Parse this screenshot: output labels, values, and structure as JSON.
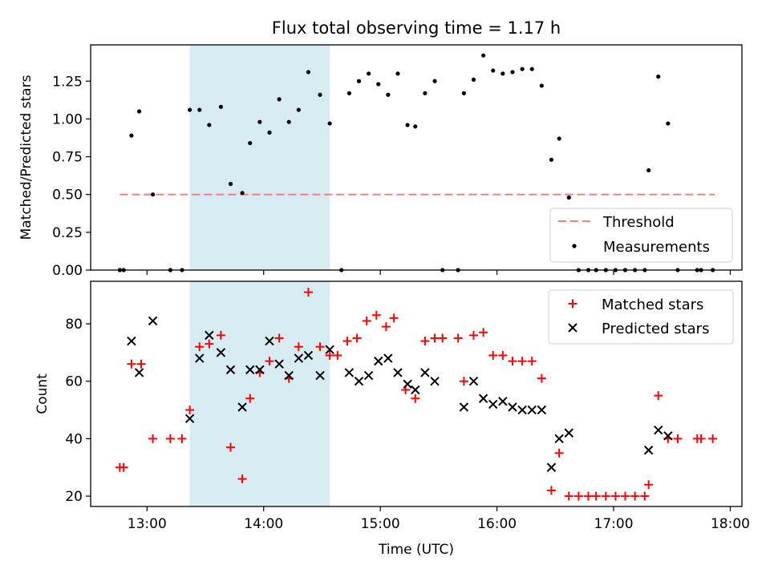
{
  "figure": {
    "title": "Flux total observing time = 1.17 h"
  },
  "colors": {
    "threshold": "#f08080",
    "measurement": "#000000",
    "matched": "#ff0000",
    "predicted": "#000000",
    "shade": "#add8e6"
  },
  "chart_data": [
    {
      "type": "scatter",
      "ylabel": "Matched/Predicted stars",
      "ylim": [
        0.0,
        1.49
      ],
      "yticks": [
        "0.00",
        "0.25",
        "0.50",
        "0.75",
        "1.00",
        "1.25"
      ],
      "xlim": [
        "12:31",
        "18:06"
      ],
      "xticks": [
        "13:00",
        "14:00",
        "15:00",
        "16:00",
        "17:00",
        "18:00"
      ],
      "xticklabels_visible": false,
      "shaded_span": [
        "13:22",
        "14:34"
      ],
      "threshold": {
        "name": "Threshold",
        "value": 0.5,
        "x_range": [
          "12:46",
          "17:52"
        ]
      },
      "legend": {
        "placement": "lower right",
        "entries": [
          "Threshold",
          "Measurements"
        ]
      },
      "series": [
        {
          "name": "Measurements",
          "points": [
            [
              "12:46",
              0.0
            ],
            [
              "12:48",
              0.0
            ],
            [
              "12:52",
              0.89
            ],
            [
              "12:56",
              1.05
            ],
            [
              "13:03",
              0.5
            ],
            [
              "13:12",
              0.0
            ],
            [
              "13:18",
              0.0
            ],
            [
              "13:22",
              1.06
            ],
            [
              "13:27",
              1.06
            ],
            [
              "13:32",
              0.96
            ],
            [
              "13:38",
              1.08
            ],
            [
              "13:43",
              0.57
            ],
            [
              "13:49",
              0.51
            ],
            [
              "13:53",
              0.84
            ],
            [
              "13:58",
              0.98
            ],
            [
              "14:03",
              0.91
            ],
            [
              "14:08",
              1.13
            ],
            [
              "14:13",
              0.98
            ],
            [
              "14:18",
              1.06
            ],
            [
              "14:23",
              1.31
            ],
            [
              "14:29",
              1.16
            ],
            [
              "14:34",
              0.97
            ],
            [
              "14:40",
              0.0
            ],
            [
              "14:44",
              1.17
            ],
            [
              "14:49",
              1.25
            ],
            [
              "14:54",
              1.3
            ],
            [
              "14:59",
              1.23
            ],
            [
              "15:04",
              1.16
            ],
            [
              "15:09",
              1.3
            ],
            [
              "15:14",
              0.96
            ],
            [
              "15:18",
              0.95
            ],
            [
              "15:23",
              1.17
            ],
            [
              "15:28",
              1.25
            ],
            [
              "15:32",
              0.0
            ],
            [
              "15:40",
              0.0
            ],
            [
              "15:43",
              1.17
            ],
            [
              "15:48",
              1.26
            ],
            [
              "15:53",
              1.42
            ],
            [
              "15:58",
              1.32
            ],
            [
              "16:03",
              1.3
            ],
            [
              "16:08",
              1.31
            ],
            [
              "16:13",
              1.33
            ],
            [
              "16:18",
              1.33
            ],
            [
              "16:23",
              1.22
            ],
            [
              "16:28",
              0.73
            ],
            [
              "16:32",
              0.87
            ],
            [
              "16:37",
              0.48
            ],
            [
              "16:42",
              0.0
            ],
            [
              "16:47",
              0.0
            ],
            [
              "16:51",
              0.0
            ],
            [
              "16:56",
              0.0
            ],
            [
              "17:01",
              0.0
            ],
            [
              "17:06",
              0.0
            ],
            [
              "17:11",
              0.0
            ],
            [
              "17:16",
              0.0
            ],
            [
              "17:18",
              0.66
            ],
            [
              "17:23",
              1.28
            ],
            [
              "17:28",
              0.97
            ],
            [
              "17:33",
              0.0
            ],
            [
              "17:43",
              0.0
            ],
            [
              "17:45",
              0.0
            ],
            [
              "17:51",
              0.0
            ]
          ]
        }
      ]
    },
    {
      "type": "scatter",
      "ylabel": "Count",
      "xlabel": "Time (UTC)",
      "ylim": [
        16.4,
        94.8
      ],
      "yticks": [
        "20",
        "40",
        "60",
        "80"
      ],
      "xlim": [
        "12:31",
        "18:06"
      ],
      "xticks": [
        "13:00",
        "14:00",
        "15:00",
        "16:00",
        "17:00",
        "18:00"
      ],
      "shaded_span": [
        "13:22",
        "14:34"
      ],
      "legend": {
        "placement": "upper right",
        "entries": [
          "Matched stars",
          "Predicted stars"
        ]
      },
      "series": [
        {
          "name": "Matched stars",
          "marker": "plus",
          "points": [
            [
              "12:46",
              30
            ],
            [
              "12:48",
              30
            ],
            [
              "12:52",
              66
            ],
            [
              "12:57",
              66
            ],
            [
              "13:03",
              40
            ],
            [
              "13:12",
              40
            ],
            [
              "13:18",
              40
            ],
            [
              "13:22",
              50
            ],
            [
              "13:27",
              72
            ],
            [
              "13:32",
              73
            ],
            [
              "13:38",
              76
            ],
            [
              "13:43",
              37
            ],
            [
              "13:49",
              26
            ],
            [
              "13:53",
              54
            ],
            [
              "13:58",
              63
            ],
            [
              "14:03",
              67
            ],
            [
              "14:08",
              75
            ],
            [
              "14:13",
              61
            ],
            [
              "14:18",
              72
            ],
            [
              "14:23",
              91
            ],
            [
              "14:29",
              72
            ],
            [
              "14:34",
              69
            ],
            [
              "14:38",
              69
            ],
            [
              "14:43",
              74
            ],
            [
              "14:48",
              75
            ],
            [
              "14:53",
              81
            ],
            [
              "14:58",
              83
            ],
            [
              "15:03",
              79
            ],
            [
              "15:07",
              82
            ],
            [
              "15:13",
              57
            ],
            [
              "15:18",
              54
            ],
            [
              "15:23",
              74
            ],
            [
              "15:28",
              75
            ],
            [
              "15:32",
              75
            ],
            [
              "15:40",
              75
            ],
            [
              "15:43",
              60
            ],
            [
              "15:48",
              76
            ],
            [
              "15:53",
              77
            ],
            [
              "15:58",
              69
            ],
            [
              "16:03",
              69
            ],
            [
              "16:08",
              67
            ],
            [
              "16:13",
              67
            ],
            [
              "16:18",
              67
            ],
            [
              "16:23",
              61
            ],
            [
              "16:28",
              22
            ],
            [
              "16:32",
              35
            ],
            [
              "16:37",
              20
            ],
            [
              "16:42",
              20
            ],
            [
              "16:47",
              20
            ],
            [
              "16:51",
              20
            ],
            [
              "16:56",
              20
            ],
            [
              "17:01",
              20
            ],
            [
              "17:06",
              20
            ],
            [
              "17:11",
              20
            ],
            [
              "17:16",
              20
            ],
            [
              "17:18",
              24
            ],
            [
              "17:23",
              55
            ],
            [
              "17:28",
              40
            ],
            [
              "17:33",
              40
            ],
            [
              "17:43",
              40
            ],
            [
              "17:45",
              40
            ],
            [
              "17:51",
              40
            ]
          ]
        },
        {
          "name": "Predicted stars",
          "marker": "x",
          "points": [
            [
              "12:52",
              74
            ],
            [
              "12:56",
              63
            ],
            [
              "13:03",
              81
            ],
            [
              "13:22",
              47
            ],
            [
              "13:27",
              68
            ],
            [
              "13:32",
              76
            ],
            [
              "13:38",
              70
            ],
            [
              "13:43",
              64
            ],
            [
              "13:49",
              51
            ],
            [
              "13:53",
              64
            ],
            [
              "13:58",
              64
            ],
            [
              "14:03",
              74
            ],
            [
              "14:08",
              66
            ],
            [
              "14:13",
              62
            ],
            [
              "14:18",
              68
            ],
            [
              "14:23",
              69
            ],
            [
              "14:29",
              62
            ],
            [
              "14:34",
              71
            ],
            [
              "14:44",
              63
            ],
            [
              "14:49",
              60
            ],
            [
              "14:54",
              62
            ],
            [
              "14:59",
              67
            ],
            [
              "15:04",
              68
            ],
            [
              "15:09",
              63
            ],
            [
              "15:14",
              59
            ],
            [
              "15:18",
              57
            ],
            [
              "15:23",
              63
            ],
            [
              "15:28",
              60
            ],
            [
              "15:43",
              51
            ],
            [
              "15:48",
              60
            ],
            [
              "15:53",
              54
            ],
            [
              "15:58",
              52
            ],
            [
              "16:03",
              53
            ],
            [
              "16:08",
              51
            ],
            [
              "16:13",
              50
            ],
            [
              "16:18",
              50
            ],
            [
              "16:23",
              50
            ],
            [
              "16:28",
              30
            ],
            [
              "16:32",
              40
            ],
            [
              "16:37",
              42
            ],
            [
              "17:18",
              36
            ],
            [
              "17:23",
              43
            ],
            [
              "17:28",
              41
            ]
          ]
        }
      ]
    }
  ]
}
